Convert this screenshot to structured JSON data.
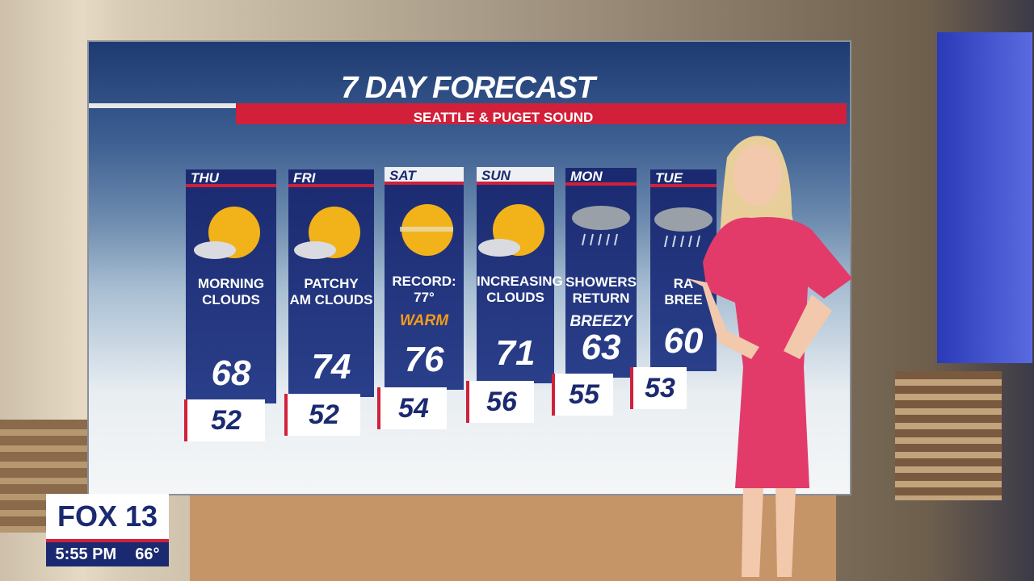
{
  "header": {
    "title": "7 DAY FORECAST",
    "subtitle": "SEATTLE & PUGET SOUND"
  },
  "days": [
    {
      "day": "THU",
      "lines": [
        "MORNING",
        "CLOUDS"
      ],
      "note": null,
      "high": 68,
      "low": 52
    },
    {
      "day": "FRI",
      "lines": [
        "PATCHY",
        "AM CLOUDS"
      ],
      "note": null,
      "high": 74,
      "low": 52
    },
    {
      "day": "SAT",
      "lines": [
        "RECORD:",
        "77°"
      ],
      "note": "WARM",
      "high": 76,
      "low": 54
    },
    {
      "day": "SUN",
      "lines": [
        "INCREASING",
        "CLOUDS"
      ],
      "note": null,
      "high": 71,
      "low": 56
    },
    {
      "day": "MON",
      "lines": [
        "SHOWERS",
        "RETURN"
      ],
      "note": "BREEZY",
      "high": 63,
      "low": 55
    },
    {
      "day": "TUE",
      "lines": [
        "RA",
        "BREE"
      ],
      "note": null,
      "high": 60,
      "low": 53
    }
  ],
  "bug": {
    "logo": "FOX 13",
    "time": "5:55 PM",
    "temp": "66°"
  }
}
